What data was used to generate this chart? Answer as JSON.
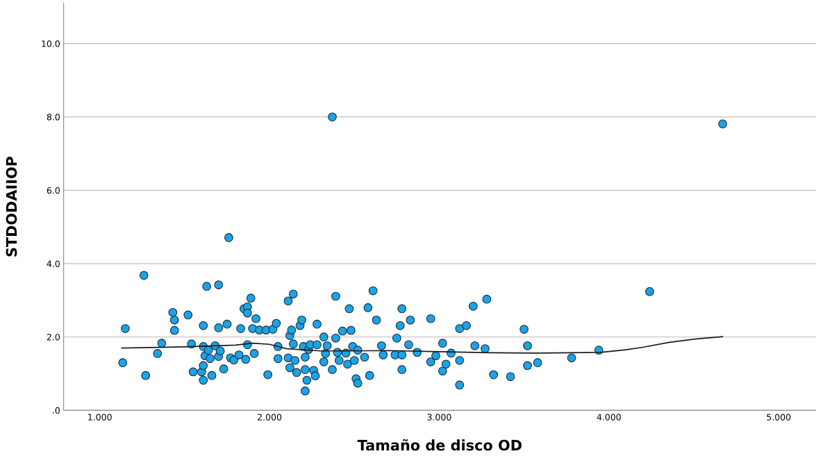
{
  "chart_data": {
    "type": "scatter",
    "xlabel": "Tamaño de disco OD",
    "ylabel": "STDODAIIOP",
    "xlim": [
      0.787,
      5.22
    ],
    "ylim": [
      0,
      11.1
    ],
    "xticks": [
      {
        "value": 1,
        "label": "1.000"
      },
      {
        "value": 2,
        "label": "2.000"
      },
      {
        "value": 3,
        "label": "3.000"
      },
      {
        "value": 4,
        "label": "4.000"
      },
      {
        "value": 5,
        "label": "5.000"
      }
    ],
    "yticks": [
      {
        "value": 0,
        "label": ".0"
      },
      {
        "value": 2,
        "label": "2.0"
      },
      {
        "value": 4,
        "label": "4.0"
      },
      {
        "value": 6,
        "label": "6.0"
      },
      {
        "value": 8,
        "label": "8.0"
      },
      {
        "value": 10,
        "label": "10.0"
      }
    ],
    "grid": "y",
    "marker": "circle",
    "series": [
      {
        "color": "#1ba3e8",
        "x": [
          1.135,
          1.15,
          1.26,
          1.27,
          1.34,
          1.365,
          1.43,
          1.44,
          1.44,
          1.52,
          1.54,
          1.55,
          1.6,
          1.61,
          1.61,
          1.61,
          1.61,
          1.62,
          1.63,
          1.64,
          1.65,
          1.66,
          1.68,
          1.7,
          1.7,
          1.7,
          1.71,
          1.73,
          1.75,
          1.76,
          1.77,
          1.79,
          1.82,
          1.83,
          1.85,
          1.86,
          1.87,
          1.87,
          1.87,
          1.89,
          1.9,
          1.91,
          1.92,
          1.94,
          1.98,
          1.99,
          2.02,
          2.04,
          2.05,
          2.05,
          2.11,
          2.11,
          2.12,
          2.14,
          2.12,
          2.13,
          2.14,
          2.15,
          2.16,
          2.18,
          2.19,
          2.2,
          2.21,
          2.21,
          2.21,
          2.22,
          2.23,
          2.24,
          2.26,
          2.27,
          2.28,
          2.28,
          2.32,
          2.32,
          2.33,
          2.34,
          2.37,
          2.37,
          2.39,
          2.39,
          2.4,
          2.41,
          2.43,
          2.45,
          2.46,
          2.47,
          2.48,
          2.49,
          2.5,
          2.51,
          2.52,
          2.52,
          2.56,
          2.58,
          2.59,
          2.61,
          2.63,
          2.66,
          2.67,
          2.74,
          2.75,
          2.77,
          2.78,
          2.78,
          2.78,
          2.82,
          2.83,
          2.87,
          2.95,
          2.95,
          2.98,
          3.02,
          3.02,
          3.04,
          3.07,
          3.12,
          3.12,
          3.12,
          3.16,
          3.2,
          3.21,
          3.27,
          3.28,
          3.32,
          3.42,
          3.5,
          3.52,
          3.52,
          3.58,
          3.78,
          3.94,
          4.24,
          4.67
        ],
        "values": [
          1.3,
          2.23,
          3.68,
          0.95,
          1.55,
          1.83,
          2.67,
          2.46,
          2.18,
          2.6,
          1.81,
          1.05,
          1.05,
          1.22,
          0.82,
          2.31,
          1.74,
          1.49,
          3.38,
          1.64,
          1.41,
          0.95,
          1.76,
          3.42,
          2.25,
          1.47,
          1.62,
          1.13,
          2.35,
          4.71,
          1.43,
          1.37,
          1.51,
          2.23,
          2.77,
          1.39,
          1.79,
          2.82,
          2.65,
          3.06,
          2.23,
          1.55,
          2.5,
          2.19,
          2.19,
          0.97,
          2.21,
          2.37,
          1.74,
          1.41,
          1.43,
          2.98,
          1.16,
          3.17,
          2.04,
          2.19,
          1.81,
          1.36,
          1.03,
          2.31,
          2.46,
          1.74,
          1.45,
          0.53,
          1.11,
          0.82,
          1.66,
          1.79,
          1.09,
          0.94,
          2.35,
          1.79,
          2.0,
          1.32,
          1.55,
          1.76,
          1.11,
          8.0,
          3.11,
          1.97,
          1.58,
          1.36,
          2.16,
          1.56,
          1.26,
          2.77,
          2.18,
          1.74,
          1.36,
          0.86,
          0.74,
          1.64,
          1.45,
          2.8,
          0.95,
          3.26,
          2.46,
          1.76,
          1.51,
          1.51,
          1.97,
          2.31,
          2.77,
          1.11,
          1.51,
          1.79,
          2.46,
          1.58,
          2.5,
          1.32,
          1.49,
          1.83,
          1.07,
          1.26,
          1.56,
          0.69,
          1.36,
          2.23,
          2.31,
          2.84,
          1.76,
          1.68,
          3.03,
          0.97,
          0.92,
          2.21,
          1.76,
          1.22,
          1.3,
          1.43,
          1.64,
          3.24,
          7.81
        ]
      },
      {
        "type": "line",
        "color": "#1a1a1a",
        "marker": "none",
        "x": [
          1.13,
          1.5,
          1.8,
          1.9,
          2.0,
          2.1,
          2.3,
          2.5,
          2.7,
          3.0,
          3.3,
          3.6,
          3.95,
          4.1,
          4.2,
          4.35,
          4.5,
          4.67
        ],
        "values": [
          1.7,
          1.73,
          1.78,
          1.83,
          1.8,
          1.68,
          1.62,
          1.62,
          1.63,
          1.6,
          1.57,
          1.56,
          1.58,
          1.65,
          1.72,
          1.85,
          1.94,
          2.01
        ]
      }
    ]
  }
}
